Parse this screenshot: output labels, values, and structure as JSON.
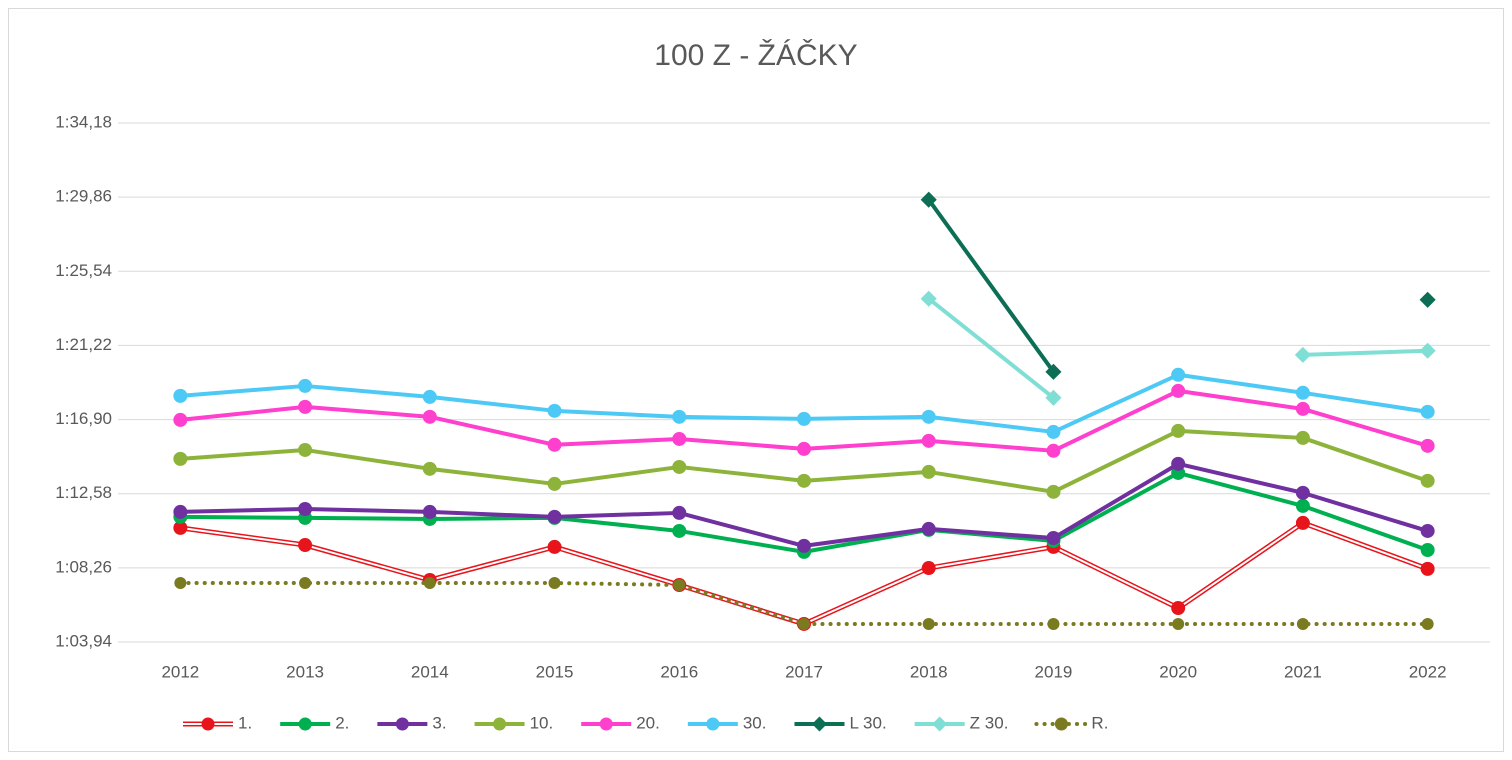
{
  "chart_data": {
    "type": "line",
    "title": "100 Z - ŽÁČKY",
    "categories": [
      "2012",
      "2013",
      "2014",
      "2015",
      "2016",
      "2017",
      "2018",
      "2019",
      "2020",
      "2021",
      "2022"
    ],
    "ylim": [
      63.94,
      94.18
    ],
    "yticks": [
      {
        "value": 63.94,
        "label": "1:03,94"
      },
      {
        "value": 68.26,
        "label": "1:08,26"
      },
      {
        "value": 72.58,
        "label": "1:12,58"
      },
      {
        "value": 76.9,
        "label": "1:16,90"
      },
      {
        "value": 81.22,
        "label": "1:21,22"
      },
      {
        "value": 85.54,
        "label": "1:25,54"
      },
      {
        "value": 89.86,
        "label": "1:29,86"
      },
      {
        "value": 94.18,
        "label": "1:34,18"
      }
    ],
    "grid": true,
    "legend": "bottom",
    "series": [
      {
        "name": "1.",
        "color": "#e8141b",
        "marker": "circle",
        "line": "double",
        "values": [
          70.59,
          69.59,
          67.55,
          69.48,
          67.26,
          64.99,
          68.25,
          69.48,
          65.92,
          70.88,
          68.2
        ]
      },
      {
        "name": "2.",
        "color": "#00b050",
        "marker": "circle",
        "line": "solid",
        "values": [
          71.23,
          71.17,
          71.11,
          71.17,
          70.41,
          69.19,
          70.47,
          69.83,
          73.79,
          71.87,
          69.3
        ]
      },
      {
        "name": "3.",
        "color": "#7030a0",
        "marker": "circle",
        "line": "solid",
        "values": [
          71.52,
          71.69,
          71.52,
          71.23,
          71.46,
          69.54,
          70.53,
          70.0,
          74.32,
          72.63,
          70.41
        ]
      },
      {
        "name": "10.",
        "color": "#8db33a",
        "marker": "circle",
        "line": "solid",
        "values": [
          74.61,
          75.13,
          74.03,
          73.15,
          74.14,
          73.33,
          73.85,
          72.69,
          76.24,
          75.83,
          73.33
        ]
      },
      {
        "name": "20.",
        "color": "#ff3fcd",
        "marker": "circle",
        "line": "solid",
        "values": [
          76.88,
          77.64,
          77.06,
          75.43,
          75.77,
          75.19,
          75.66,
          75.08,
          78.57,
          77.52,
          75.37
        ]
      },
      {
        "name": "30.",
        "color": "#4dc9f6",
        "marker": "circle",
        "line": "solid",
        "values": [
          78.28,
          78.86,
          78.22,
          77.41,
          77.06,
          76.94,
          77.06,
          76.18,
          79.51,
          78.46,
          77.35
        ]
      },
      {
        "name": "L 30.",
        "color": "#0b6e55",
        "marker": "diamond",
        "line": "solid",
        "values": [
          null,
          null,
          null,
          null,
          null,
          null,
          89.71,
          79.68,
          null,
          null,
          83.88
        ]
      },
      {
        "name": "Z 30.",
        "color": "#7fdfd4",
        "marker": "diamond",
        "line": "solid",
        "values": [
          null,
          null,
          null,
          null,
          null,
          null,
          83.94,
          78.17,
          null,
          80.67,
          80.91
        ]
      },
      {
        "name": "R.",
        "color": "#7a7a20",
        "marker": "circle",
        "line": "dotted",
        "values": [
          67.38,
          67.38,
          67.38,
          67.38,
          67.26,
          64.99,
          64.99,
          64.99,
          64.99,
          64.99,
          64.99
        ]
      }
    ]
  }
}
